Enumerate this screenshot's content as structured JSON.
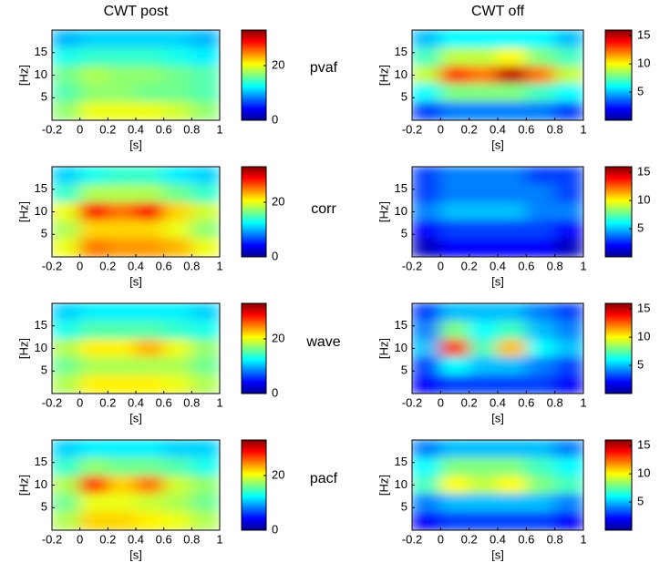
{
  "row_labels": [
    "pvaf",
    "corr",
    "wave",
    "pacf"
  ],
  "chart_data": [
    {
      "type": "heatmap",
      "title": "CWT post",
      "xlabel": "[s]",
      "ylabel": "[Hz]",
      "colormap": "jet",
      "x": [
        -0.1,
        0.1,
        0.3,
        0.5,
        0.7,
        0.9
      ],
      "y": [
        18,
        14,
        10,
        6,
        2
      ],
      "z": [
        [
          10,
          11,
          11,
          11,
          11,
          10
        ],
        [
          13,
          14,
          14,
          14,
          13,
          12
        ],
        [
          16,
          18,
          17,
          17,
          16,
          15
        ],
        [
          15,
          17,
          17,
          16,
          16,
          15
        ],
        [
          17,
          20,
          20,
          20,
          19,
          17
        ]
      ],
      "xlim": [
        -0.2,
        1
      ],
      "xticks": [
        -0.2,
        0,
        0.2,
        0.4,
        0.6,
        0.8,
        1
      ],
      "ylim": [
        0,
        20
      ],
      "yticks": [
        5,
        10,
        15
      ],
      "clim": [
        0,
        33
      ],
      "cticks": [
        0,
        20
      ]
    },
    {
      "type": "heatmap",
      "title": "CWT off",
      "xlabel": "[s]",
      "ylabel": "[Hz]",
      "colormap": "jet",
      "x": [
        -0.1,
        0.1,
        0.3,
        0.5,
        0.7,
        0.9
      ],
      "y": [
        18,
        14,
        10,
        6,
        2
      ],
      "z": [
        [
          5,
          6,
          6,
          6,
          6,
          5
        ],
        [
          7,
          9,
          9,
          10,
          8,
          7
        ],
        [
          9,
          13,
          12,
          15,
          12,
          9
        ],
        [
          6,
          8,
          8,
          8,
          7,
          6
        ],
        [
          3,
          4,
          4,
          4,
          4,
          3
        ]
      ],
      "xlim": [
        -0.2,
        1
      ],
      "xticks": [
        -0.2,
        0,
        0.2,
        0.4,
        0.6,
        0.8,
        1
      ],
      "ylim": [
        0,
        20
      ],
      "yticks": [
        5,
        10,
        15
      ],
      "clim": [
        0,
        16
      ],
      "cticks": [
        5,
        10,
        15
      ]
    },
    {
      "type": "heatmap",
      "xlabel": "[s]",
      "ylabel": "[Hz]",
      "colormap": "jet",
      "x": [
        -0.1,
        0.1,
        0.3,
        0.5,
        0.7,
        0.9
      ],
      "y": [
        18,
        14,
        10,
        6,
        2
      ],
      "z": [
        [
          11,
          13,
          14,
          14,
          12,
          11
        ],
        [
          14,
          18,
          18,
          18,
          16,
          14
        ],
        [
          20,
          29,
          25,
          29,
          22,
          19
        ],
        [
          18,
          22,
          22,
          22,
          20,
          17
        ],
        [
          20,
          25,
          24,
          24,
          23,
          20
        ]
      ],
      "xlim": [
        -0.2,
        1
      ],
      "xticks": [
        -0.2,
        0,
        0.2,
        0.4,
        0.6,
        0.8,
        1
      ],
      "ylim": [
        0,
        20
      ],
      "yticks": [
        5,
        10,
        15
      ],
      "clim": [
        0,
        33
      ],
      "cticks": [
        0,
        20
      ]
    },
    {
      "type": "heatmap",
      "xlabel": "[s]",
      "ylabel": "[Hz]",
      "colormap": "jet",
      "x": [
        -0.1,
        0.1,
        0.3,
        0.5,
        0.7,
        0.9
      ],
      "y": [
        18,
        14,
        10,
        6,
        2
      ],
      "z": [
        [
          3,
          4,
          4,
          4,
          3,
          3
        ],
        [
          3,
          4,
          4,
          4,
          4,
          3
        ],
        [
          4,
          5,
          5,
          5,
          4,
          4
        ],
        [
          2,
          3,
          3,
          3,
          3,
          2
        ],
        [
          1,
          2,
          2,
          2,
          2,
          1
        ]
      ],
      "xlim": [
        -0.2,
        1
      ],
      "xticks": [
        -0.2,
        0,
        0.2,
        0.4,
        0.6,
        0.8,
        1
      ],
      "ylim": [
        0,
        20
      ],
      "yticks": [
        5,
        10,
        15
      ],
      "clim": [
        0,
        16
      ],
      "cticks": [
        5,
        10,
        15
      ]
    },
    {
      "type": "heatmap",
      "xlabel": "[s]",
      "ylabel": "[Hz]",
      "colormap": "jet",
      "x": [
        -0.1,
        0.1,
        0.3,
        0.5,
        0.7,
        0.9
      ],
      "y": [
        18,
        14,
        10,
        6,
        2
      ],
      "z": [
        [
          11,
          12,
          12,
          12,
          12,
          11
        ],
        [
          13,
          15,
          15,
          15,
          14,
          13
        ],
        [
          18,
          21,
          21,
          23,
          20,
          17
        ],
        [
          16,
          18,
          18,
          18,
          18,
          16
        ],
        [
          18,
          21,
          21,
          21,
          20,
          18
        ]
      ],
      "xlim": [
        -0.2,
        1
      ],
      "xticks": [
        -0.2,
        0,
        0.2,
        0.4,
        0.6,
        0.8,
        1
      ],
      "ylim": [
        0,
        20
      ],
      "yticks": [
        5,
        10,
        15
      ],
      "clim": [
        0,
        33
      ],
      "cticks": [
        0,
        20
      ]
    },
    {
      "type": "heatmap",
      "xlabel": "[s]",
      "ylabel": "[Hz]",
      "colormap": "jet",
      "x": [
        -0.1,
        0.1,
        0.3,
        0.5,
        0.7,
        0.9
      ],
      "y": [
        18,
        14,
        10,
        6,
        2
      ],
      "z": [
        [
          3,
          5,
          5,
          5,
          4,
          3
        ],
        [
          4,
          8,
          6,
          7,
          5,
          4
        ],
        [
          5,
          13,
          7,
          11,
          6,
          5
        ],
        [
          3,
          6,
          5,
          5,
          4,
          3
        ],
        [
          2,
          3,
          3,
          3,
          3,
          2
        ]
      ],
      "xlim": [
        -0.2,
        1
      ],
      "xticks": [
        -0.2,
        0,
        0.2,
        0.4,
        0.6,
        0.8,
        1
      ],
      "ylim": [
        0,
        20
      ],
      "yticks": [
        5,
        10,
        15
      ],
      "clim": [
        0,
        16
      ],
      "cticks": [
        5,
        10,
        15
      ]
    },
    {
      "type": "heatmap",
      "xlabel": "[s]",
      "ylabel": "[Hz]",
      "colormap": "jet",
      "x": [
        -0.1,
        0.1,
        0.3,
        0.5,
        0.7,
        0.9
      ],
      "y": [
        18,
        14,
        10,
        6,
        2
      ],
      "z": [
        [
          11,
          12,
          12,
          12,
          11,
          11
        ],
        [
          14,
          17,
          16,
          16,
          15,
          13
        ],
        [
          18,
          27,
          22,
          25,
          19,
          17
        ],
        [
          16,
          20,
          20,
          19,
          18,
          16
        ],
        [
          18,
          22,
          22,
          21,
          20,
          18
        ]
      ],
      "xlim": [
        -0.2,
        1
      ],
      "xticks": [
        -0.2,
        0,
        0.2,
        0.4,
        0.6,
        0.8,
        1
      ],
      "ylim": [
        0,
        20
      ],
      "yticks": [
        5,
        10,
        15
      ],
      "clim": [
        0,
        33
      ],
      "cticks": [
        0,
        20
      ]
    },
    {
      "type": "heatmap",
      "xlabel": "[s]",
      "ylabel": "[Hz]",
      "colormap": "jet",
      "x": [
        -0.1,
        0.1,
        0.3,
        0.5,
        0.7,
        0.9
      ],
      "y": [
        18,
        14,
        10,
        6,
        2
      ],
      "z": [
        [
          4,
          5,
          5,
          5,
          5,
          4
        ],
        [
          6,
          8,
          8,
          8,
          7,
          6
        ],
        [
          7,
          10,
          9,
          10,
          8,
          7
        ],
        [
          4,
          5,
          5,
          5,
          5,
          4
        ],
        [
          2,
          3,
          3,
          3,
          3,
          2
        ]
      ],
      "xlim": [
        -0.2,
        1
      ],
      "xticks": [
        -0.2,
        0,
        0.2,
        0.4,
        0.6,
        0.8,
        1
      ],
      "ylim": [
        0,
        20
      ],
      "yticks": [
        5,
        10,
        15
      ],
      "clim": [
        0,
        16
      ],
      "cticks": [
        5,
        10,
        15
      ]
    }
  ]
}
